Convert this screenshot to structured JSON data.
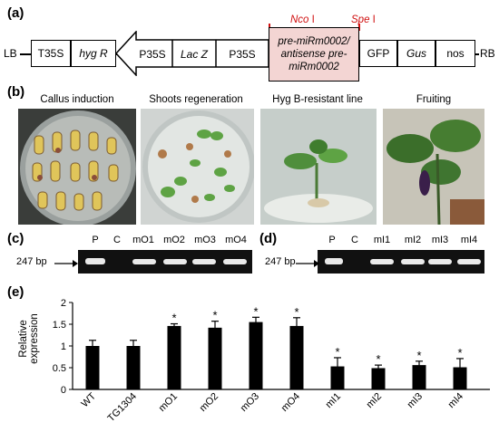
{
  "panel_a": {
    "label": "(a)",
    "lb": "LB",
    "rb": "RB",
    "boxes": [
      "T35S",
      "hyg R",
      "P35S",
      "Lac Z",
      "P35S",
      "GFP",
      "Gus",
      "nos"
    ],
    "gene_lines": [
      "pre-miRm0002/",
      "antisense pre-",
      "miRm0002"
    ],
    "site1_name": "Nco",
    "site1_suffix": " I",
    "site2_name": "Spe",
    "site2_suffix": " I"
  },
  "panel_b": {
    "label": "(b)",
    "photos": [
      "Callus induction",
      "Shoots regeneration",
      "Hyg B-resistant line",
      "Fruiting"
    ]
  },
  "panel_c": {
    "label": "(c)",
    "lanes": [
      "P",
      "C",
      "mO1",
      "mO2",
      "mO3",
      "mO4"
    ],
    "bp": "247 bp"
  },
  "panel_d": {
    "label": "(d)",
    "lanes": [
      "P",
      "C",
      "mI1",
      "mI2",
      "mI3",
      "mI4"
    ],
    "bp": "247 bp"
  },
  "panel_e": {
    "label": "(e)"
  },
  "chart_data": {
    "type": "bar",
    "categories": [
      "WT",
      "TG1304",
      "mO1",
      "mO2",
      "mO3",
      "mO4",
      "mI1",
      "mI2",
      "mI3",
      "mI4"
    ],
    "values": [
      1.0,
      1.0,
      1.46,
      1.42,
      1.55,
      1.46,
      0.53,
      0.49,
      0.56,
      0.51
    ],
    "errors": [
      0.13,
      0.13,
      0.05,
      0.15,
      0.11,
      0.19,
      0.2,
      0.07,
      0.09,
      0.2
    ],
    "significant": [
      false,
      false,
      true,
      true,
      true,
      true,
      true,
      true,
      true,
      true
    ],
    "star": "*",
    "ylabel": "Relative expression",
    "xlabel": "",
    "ylim": [
      0,
      2
    ],
    "yticks": [
      0,
      0.5,
      1,
      1.5,
      2
    ],
    "ytick_labels": [
      "0",
      "0.5",
      "1",
      "1.5",
      "2"
    ]
  }
}
